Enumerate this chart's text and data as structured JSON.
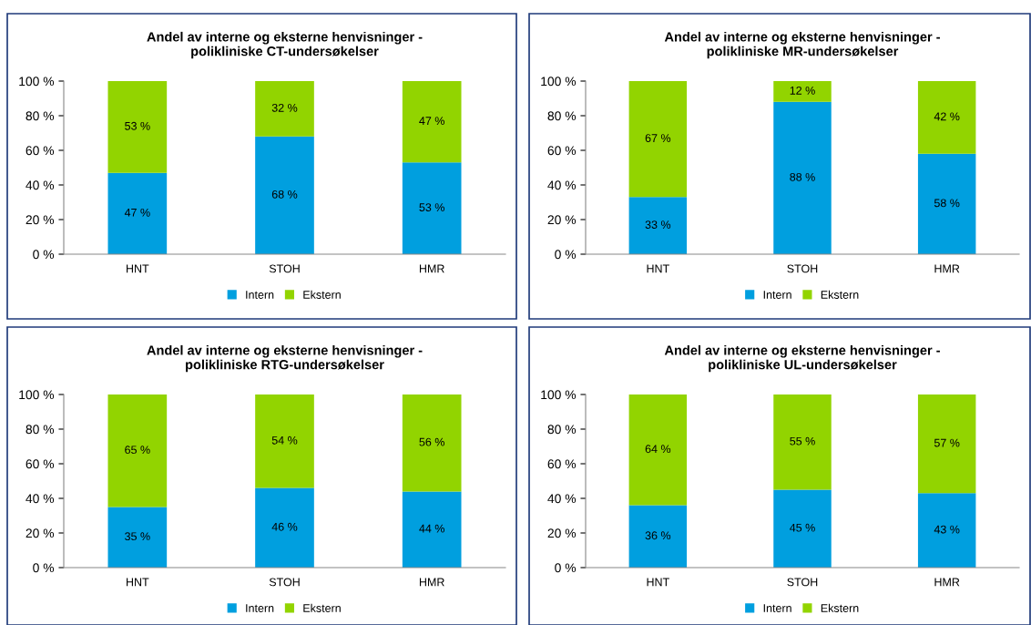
{
  "chart_data": [
    {
      "type": "bar",
      "stacked": true,
      "title": "Andel av interne og eksterne henvisninger -\npolikliniske CT-undersøkelser",
      "categories": [
        "HNT",
        "STOH",
        "HMR"
      ],
      "ylim": [
        0,
        100
      ],
      "yticks": [
        {
          "value": 0,
          "label": "0 %"
        },
        {
          "value": 20,
          "label": "20 %"
        },
        {
          "value": 40,
          "label": "40 %"
        },
        {
          "value": 60,
          "label": "60 %"
        },
        {
          "value": 80,
          "label": "80 %"
        },
        {
          "value": 100,
          "label": "100 %"
        }
      ],
      "legend": "bottom",
      "grid": false,
      "series": [
        {
          "name": "Intern",
          "color": "#009fdf",
          "values": [
            47,
            68,
            53
          ],
          "value_labels": [
            "47 %",
            "68 %",
            "53 %"
          ]
        },
        {
          "name": "Ekstern",
          "color": "#92d400",
          "values": [
            53,
            32,
            47
          ],
          "value_labels": [
            "53 %",
            "32 %",
            "47 %"
          ]
        }
      ]
    },
    {
      "type": "bar",
      "stacked": true,
      "title": "Andel av interne og eksterne henvisninger -\npolikliniske MR-undersøkelser",
      "categories": [
        "HNT",
        "STOH",
        "HMR"
      ],
      "ylim": [
        0,
        100
      ],
      "yticks": [
        {
          "value": 0,
          "label": "0 %"
        },
        {
          "value": 20,
          "label": "20 %"
        },
        {
          "value": 40,
          "label": "40 %"
        },
        {
          "value": 60,
          "label": "60 %"
        },
        {
          "value": 80,
          "label": "80 %"
        },
        {
          "value": 100,
          "label": "100 %"
        }
      ],
      "legend": "bottom",
      "grid": false,
      "series": [
        {
          "name": "Intern",
          "color": "#009fdf",
          "values": [
            33,
            88,
            58
          ],
          "value_labels": [
            "33 %",
            "88 %",
            "58 %"
          ]
        },
        {
          "name": "Ekstern",
          "color": "#92d400",
          "values": [
            67,
            12,
            42
          ],
          "value_labels": [
            "67 %",
            "12 %",
            "42 %"
          ]
        }
      ]
    },
    {
      "type": "bar",
      "stacked": true,
      "title": "Andel av interne og eksterne henvisninger -\npolikliniske RTG-undersøkelser",
      "categories": [
        "HNT",
        "STOH",
        "HMR"
      ],
      "ylim": [
        0,
        100
      ],
      "yticks": [
        {
          "value": 0,
          "label": "0 %"
        },
        {
          "value": 20,
          "label": "20 %"
        },
        {
          "value": 40,
          "label": "40 %"
        },
        {
          "value": 60,
          "label": "60 %"
        },
        {
          "value": 80,
          "label": "80 %"
        },
        {
          "value": 100,
          "label": "100 %"
        }
      ],
      "legend": "bottom",
      "grid": false,
      "series": [
        {
          "name": "Intern",
          "color": "#009fdf",
          "values": [
            35,
            46,
            44
          ],
          "value_labels": [
            "35 %",
            "46 %",
            "44 %"
          ]
        },
        {
          "name": "Ekstern",
          "color": "#92d400",
          "values": [
            65,
            54,
            56
          ],
          "value_labels": [
            "65 %",
            "54 %",
            "56 %"
          ]
        }
      ]
    },
    {
      "type": "bar",
      "stacked": true,
      "title": "Andel av interne og eksterne henvisninger -\npolikliniske UL-undersøkelser",
      "categories": [
        "HNT",
        "STOH",
        "HMR"
      ],
      "ylim": [
        0,
        100
      ],
      "yticks": [
        {
          "value": 0,
          "label": "0 %"
        },
        {
          "value": 20,
          "label": "20 %"
        },
        {
          "value": 40,
          "label": "40 %"
        },
        {
          "value": 60,
          "label": "60 %"
        },
        {
          "value": 80,
          "label": "80 %"
        },
        {
          "value": 100,
          "label": "100 %"
        }
      ],
      "legend": "bottom",
      "grid": false,
      "series": [
        {
          "name": "Intern",
          "color": "#009fdf",
          "values": [
            36,
            45,
            43
          ],
          "value_labels": [
            "36 %",
            "45 %",
            "43 %"
          ]
        },
        {
          "name": "Ekstern",
          "color": "#92d400",
          "values": [
            64,
            55,
            57
          ],
          "value_labels": [
            "64 %",
            "55 %",
            "57 %"
          ]
        }
      ]
    }
  ]
}
